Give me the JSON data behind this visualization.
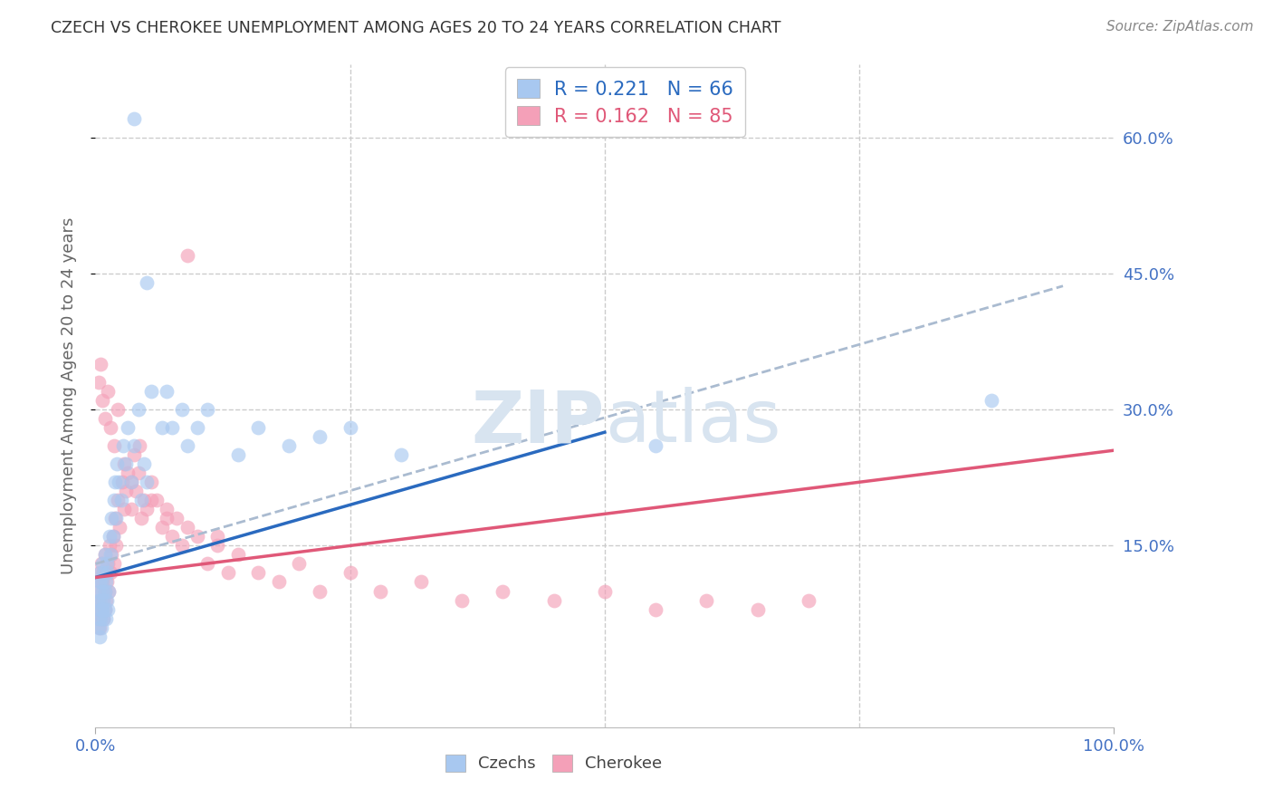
{
  "title": "CZECH VS CHEROKEE UNEMPLOYMENT AMONG AGES 20 TO 24 YEARS CORRELATION CHART",
  "source": "Source: ZipAtlas.com",
  "ylabel": "Unemployment Among Ages 20 to 24 years",
  "xlim": [
    0,
    1.0
  ],
  "ylim": [
    -0.05,
    0.68
  ],
  "czech_color": "#a8c8f0",
  "cherokee_color": "#f4a0b8",
  "czech_line_color": "#2a6abf",
  "cherokee_line_color": "#e05878",
  "dashed_line_color": "#aabbd0",
  "background_color": "#ffffff",
  "grid_color": "#cccccc",
  "watermark_color": "#d8e4f0",
  "title_color": "#333333",
  "axis_label_color": "#666666",
  "tick_label_color": "#4472c4",
  "czech_R": 0.221,
  "czech_N": 66,
  "cherokee_R": 0.162,
  "cherokee_N": 85,
  "czech_line_x0": 0.0,
  "czech_line_y0": 0.115,
  "czech_line_x1": 0.5,
  "czech_line_y1": 0.275,
  "cherokee_line_x0": 0.0,
  "cherokee_line_y0": 0.115,
  "cherokee_line_x1": 1.0,
  "cherokee_line_y1": 0.255,
  "dashed_line_x0": 0.0,
  "dashed_line_y0": 0.13,
  "dashed_line_x1": 0.9,
  "dashed_line_y1": 0.42,
  "czech_scatter_x": [
    0.002,
    0.003,
    0.003,
    0.003,
    0.004,
    0.004,
    0.004,
    0.005,
    0.005,
    0.005,
    0.006,
    0.006,
    0.006,
    0.007,
    0.007,
    0.007,
    0.008,
    0.008,
    0.008,
    0.009,
    0.009,
    0.009,
    0.01,
    0.01,
    0.011,
    0.011,
    0.012,
    0.012,
    0.013,
    0.014,
    0.015,
    0.016,
    0.017,
    0.018,
    0.019,
    0.02,
    0.021,
    0.023,
    0.025,
    0.027,
    0.03,
    0.032,
    0.035,
    0.038,
    0.038,
    0.042,
    0.045,
    0.048,
    0.05,
    0.05,
    0.055,
    0.065,
    0.07,
    0.075,
    0.085,
    0.09,
    0.1,
    0.11,
    0.14,
    0.16,
    0.19,
    0.22,
    0.25,
    0.3,
    0.55,
    0.88
  ],
  "czech_scatter_y": [
    0.09,
    0.07,
    0.1,
    0.06,
    0.08,
    0.05,
    0.11,
    0.09,
    0.07,
    0.12,
    0.08,
    0.11,
    0.06,
    0.1,
    0.08,
    0.13,
    0.09,
    0.07,
    0.12,
    0.1,
    0.08,
    0.14,
    0.11,
    0.07,
    0.13,
    0.09,
    0.12,
    0.08,
    0.1,
    0.16,
    0.14,
    0.18,
    0.16,
    0.2,
    0.22,
    0.18,
    0.24,
    0.22,
    0.2,
    0.26,
    0.24,
    0.28,
    0.22,
    0.26,
    0.62,
    0.3,
    0.2,
    0.24,
    0.22,
    0.44,
    0.32,
    0.28,
    0.32,
    0.28,
    0.3,
    0.26,
    0.28,
    0.3,
    0.25,
    0.28,
    0.26,
    0.27,
    0.28,
    0.25,
    0.26,
    0.31
  ],
  "cherokee_scatter_x": [
    0.002,
    0.003,
    0.003,
    0.004,
    0.004,
    0.005,
    0.005,
    0.005,
    0.006,
    0.006,
    0.007,
    0.007,
    0.008,
    0.008,
    0.009,
    0.009,
    0.009,
    0.01,
    0.01,
    0.011,
    0.012,
    0.013,
    0.014,
    0.015,
    0.016,
    0.017,
    0.018,
    0.019,
    0.02,
    0.022,
    0.024,
    0.026,
    0.028,
    0.03,
    0.032,
    0.035,
    0.038,
    0.04,
    0.042,
    0.045,
    0.048,
    0.05,
    0.055,
    0.06,
    0.065,
    0.07,
    0.075,
    0.08,
    0.085,
    0.09,
    0.1,
    0.11,
    0.12,
    0.13,
    0.14,
    0.16,
    0.18,
    0.2,
    0.22,
    0.25,
    0.28,
    0.32,
    0.36,
    0.4,
    0.45,
    0.5,
    0.55,
    0.6,
    0.65,
    0.7,
    0.003,
    0.005,
    0.007,
    0.009,
    0.012,
    0.015,
    0.018,
    0.022,
    0.028,
    0.035,
    0.043,
    0.055,
    0.07,
    0.09,
    0.12
  ],
  "cherokee_scatter_y": [
    0.08,
    0.07,
    0.1,
    0.06,
    0.12,
    0.09,
    0.07,
    0.11,
    0.08,
    0.13,
    0.09,
    0.11,
    0.07,
    0.12,
    0.08,
    0.1,
    0.14,
    0.09,
    0.12,
    0.11,
    0.13,
    0.1,
    0.15,
    0.12,
    0.14,
    0.16,
    0.13,
    0.18,
    0.15,
    0.2,
    0.17,
    0.22,
    0.19,
    0.21,
    0.23,
    0.19,
    0.25,
    0.21,
    0.23,
    0.18,
    0.2,
    0.19,
    0.22,
    0.2,
    0.17,
    0.19,
    0.16,
    0.18,
    0.15,
    0.17,
    0.16,
    0.13,
    0.15,
    0.12,
    0.14,
    0.12,
    0.11,
    0.13,
    0.1,
    0.12,
    0.1,
    0.11,
    0.09,
    0.1,
    0.09,
    0.1,
    0.08,
    0.09,
    0.08,
    0.09,
    0.33,
    0.35,
    0.31,
    0.29,
    0.32,
    0.28,
    0.26,
    0.3,
    0.24,
    0.22,
    0.26,
    0.2,
    0.18,
    0.47,
    0.16
  ]
}
